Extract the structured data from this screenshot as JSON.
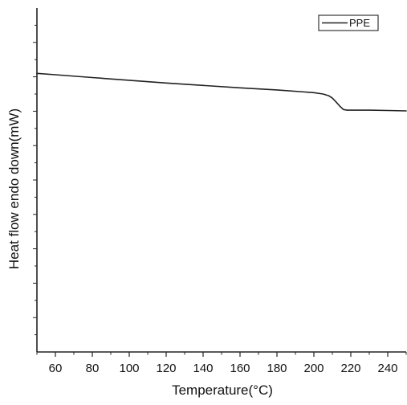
{
  "chart_data": {
    "type": "line",
    "title": "",
    "xlabel": "Temperature(°C)",
    "ylabel": "Heat flow endo down(mW)",
    "xlim": [
      50,
      250
    ],
    "x_ticks": [
      60,
      80,
      100,
      120,
      140,
      160,
      180,
      200,
      220,
      240
    ],
    "y_tick_labels_shown": false,
    "grid": false,
    "legend": {
      "placement": "top-right",
      "entries": [
        "PPE"
      ]
    },
    "line_color": "#222222",
    "series": [
      {
        "name": "PPE",
        "x": [
          50,
          60,
          80,
          100,
          120,
          140,
          160,
          180,
          200,
          205,
          208,
          210,
          212,
          214,
          216,
          218,
          220,
          225,
          230,
          240,
          250
        ],
        "y": [
          0.81,
          0.806,
          0.798,
          0.79,
          0.782,
          0.775,
          0.768,
          0.762,
          0.754,
          0.75,
          0.745,
          0.738,
          0.727,
          0.715,
          0.705,
          0.703,
          0.703,
          0.703,
          0.703,
          0.702,
          0.701
        ]
      }
    ]
  }
}
